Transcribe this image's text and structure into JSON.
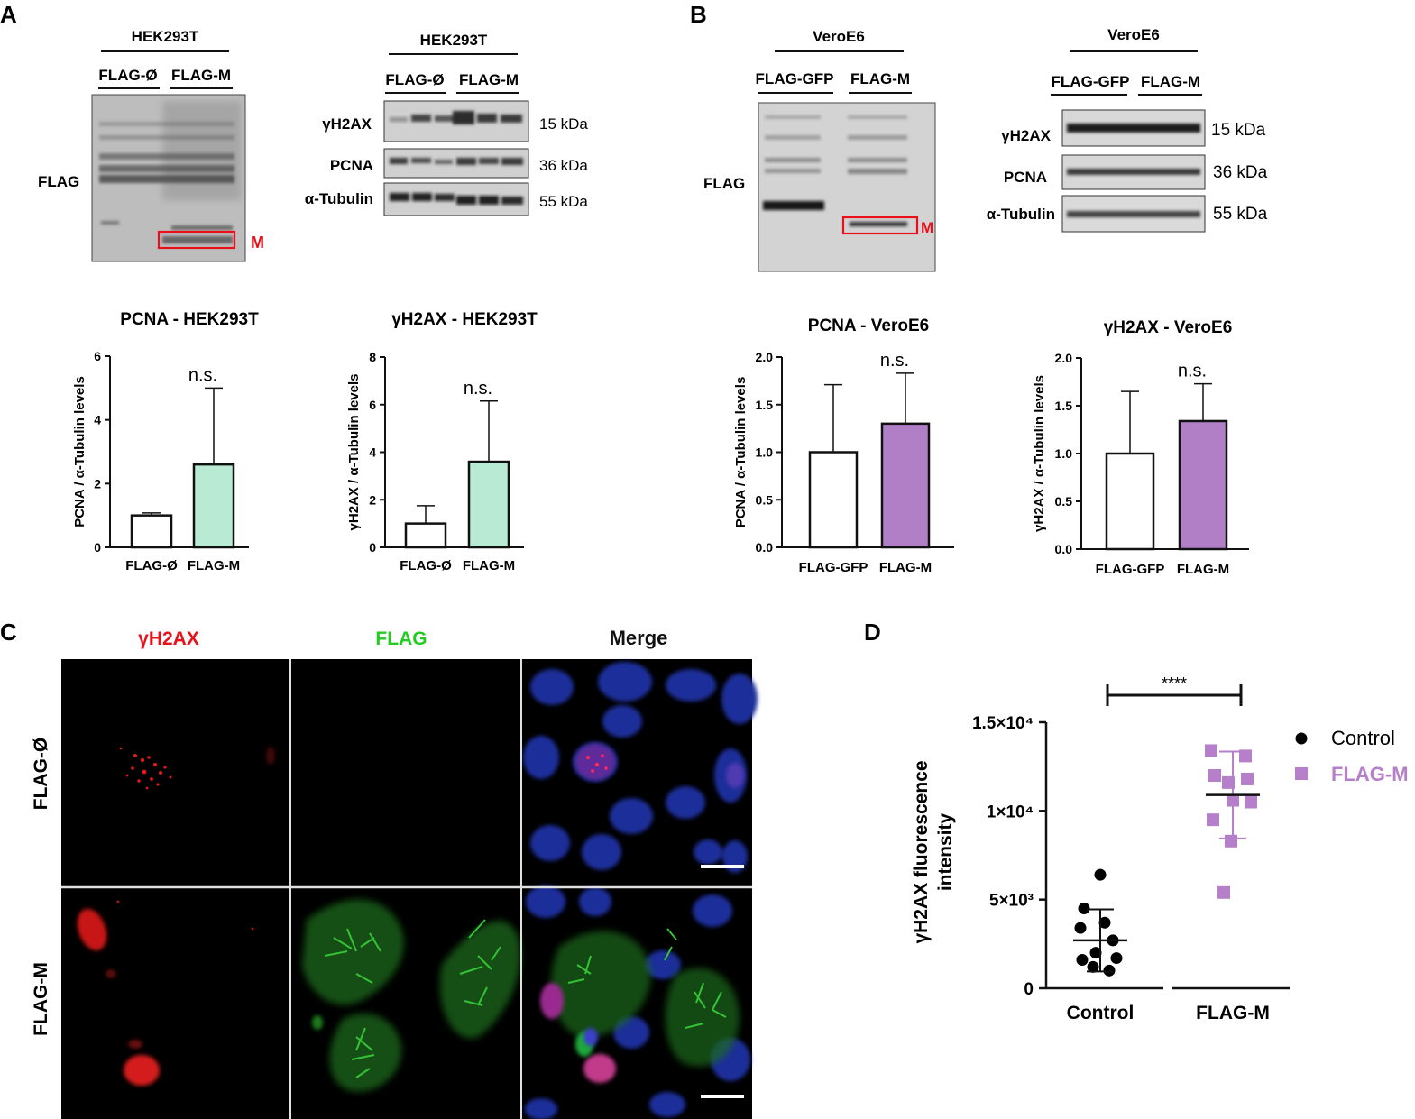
{
  "panels": {
    "A": {
      "letter": "A",
      "blot_left": {
        "cell_line": "HEK293T",
        "lanes": [
          "FLAG-Ø",
          "FLAG-M"
        ],
        "row_label": "FLAG",
        "box_label": "M"
      },
      "blot_right": {
        "cell_line": "HEK293T",
        "lanes": [
          "FLAG-Ø",
          "FLAG-M"
        ],
        "rows": [
          {
            "label": "γH2AX",
            "size": "15 kDa"
          },
          {
            "label": "PCNA",
            "size": "36 kDa"
          },
          {
            "label": "α-Tubulin",
            "size": "55 kDa"
          }
        ]
      },
      "charts": [
        {
          "title": "PCNA - HEK293T",
          "ylabel": "PCNA / α-Tubulin levels",
          "yticks": [
            "0",
            "2",
            "4",
            "6"
          ],
          "annotation": "n.s."
        },
        {
          "title": "γH2AX - HEK293T",
          "ylabel": "γH2AX / α-Tubulin levels",
          "yticks": [
            "0",
            "2",
            "4",
            "6",
            "8"
          ],
          "annotation": "n.s."
        }
      ]
    },
    "B": {
      "letter": "B",
      "blot_left": {
        "cell_line": "VeroE6",
        "lanes": [
          "FLAG-GFP",
          "FLAG-M"
        ],
        "row_label": "FLAG",
        "box_label": "M"
      },
      "blot_right": {
        "cell_line": "VeroE6",
        "lanes": [
          "FLAG-GFP",
          "FLAG-M"
        ],
        "rows": [
          {
            "label": "γH2AX",
            "size": "15 kDa"
          },
          {
            "label": "PCNA",
            "size": "36 kDa"
          },
          {
            "label": "α-Tubulin",
            "size": "55 kDa"
          }
        ]
      },
      "charts": [
        {
          "title": "PCNA - VeroE6",
          "ylabel": "PCNA / α-Tubulin levels",
          "yticks": [
            "0.0",
            "0.5",
            "1.0",
            "1.5",
            "2.0"
          ],
          "annotation": "n.s."
        },
        {
          "title": "γH2AX - VeroE6",
          "ylabel": "γH2AX / α-Tubulin levels",
          "yticks": [
            "0.0",
            "0.5",
            "1.0",
            "1.5",
            "2.0"
          ],
          "annotation": "n.s."
        }
      ]
    },
    "C": {
      "letter": "C",
      "columns": [
        "γH2AX",
        "FLAG",
        "Merge"
      ],
      "column_colors": [
        "#e8101a",
        "#22cc22",
        "#111111"
      ],
      "rows": [
        "FLAG-Ø",
        "FLAG-M"
      ]
    },
    "D": {
      "letter": "D",
      "ylabel_line1": "γH2AX fluorescence",
      "ylabel_line2": "intensity",
      "yticks": [
        "0",
        "5×10³",
        "1×10⁴",
        "1.5×10⁴"
      ],
      "significance": "****",
      "legend": [
        {
          "name": "Control",
          "color": "#000000",
          "marker": "circle"
        },
        {
          "name": "FLAG-M",
          "color": "#b57fc9",
          "marker": "square"
        }
      ]
    }
  },
  "chart_data": [
    {
      "type": "bar",
      "title": "PCNA - HEK293T",
      "ylabel": "PCNA / α-Tubulin levels",
      "categories": [
        "FLAG-Ø",
        "FLAG-M"
      ],
      "values": [
        1.0,
        2.6
      ],
      "errors": [
        0.08,
        2.4
      ],
      "colors": [
        "#ffffff",
        "#b9ead4"
      ],
      "ylim": [
        0,
        6
      ]
    },
    {
      "type": "bar",
      "title": "γH2AX - HEK293T",
      "ylabel": "γH2AX / α-Tubulin levels",
      "categories": [
        "FLAG-Ø",
        "FLAG-M"
      ],
      "values": [
        1.0,
        3.6
      ],
      "errors": [
        0.75,
        2.55
      ],
      "colors": [
        "#ffffff",
        "#b9ead4"
      ],
      "ylim": [
        0,
        8
      ]
    },
    {
      "type": "bar",
      "title": "PCNA - VeroE6",
      "ylabel": "PCNA / α-Tubulin levels",
      "categories": [
        "FLAG-GFP",
        "FLAG-M"
      ],
      "values": [
        1.0,
        1.3
      ],
      "errors": [
        0.71,
        0.53
      ],
      "colors": [
        "#ffffff",
        "#b07fc6"
      ],
      "ylim": [
        0,
        2.0
      ]
    },
    {
      "type": "bar",
      "title": "γH2AX - VeroE6",
      "ylabel": "γH2AX / α-Tubulin levels",
      "categories": [
        "FLAG-GFP",
        "FLAG-M"
      ],
      "values": [
        1.0,
        1.34
      ],
      "errors": [
        0.65,
        0.39
      ],
      "colors": [
        "#ffffff",
        "#b07fc6"
      ],
      "ylim": [
        0,
        2.0
      ]
    },
    {
      "type": "scatter",
      "ylabel": "γH2AX fluorescence intensity",
      "categories": [
        "Control",
        "FLAG-M"
      ],
      "ylim": [
        0,
        15000
      ],
      "series": [
        {
          "name": "Control",
          "values": [
            6400,
            4500,
            3700,
            3400,
            2700,
            2000,
            1700,
            1600,
            1200,
            1000
          ],
          "mean": 2700,
          "sd": 1750
        },
        {
          "name": "FLAG-M",
          "values": [
            13400,
            13100,
            12000,
            11800,
            11600,
            10600,
            10500,
            9500,
            8300,
            5400
          ],
          "mean": 10900,
          "sd": 2450
        }
      ]
    }
  ]
}
